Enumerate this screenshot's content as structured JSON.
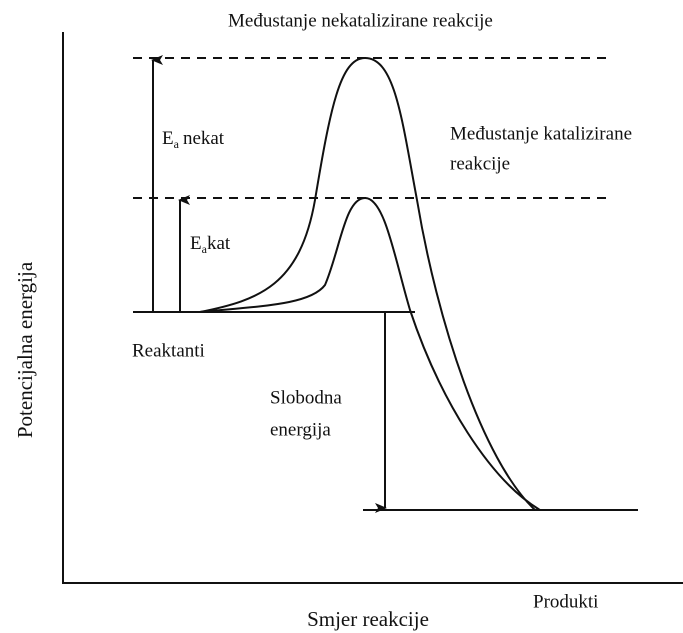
{
  "diagram": {
    "uncatalyzed_transition": "Međustanje nekatalizirane reakcije",
    "catalyzed_transition": [
      "Međustanje katalizirane",
      "reakcije"
    ],
    "ea_uncatalyzed": {
      "symbol": "E",
      "subscript": "a",
      "text": "nekat"
    },
    "ea_catalyzed": {
      "symbol": "E",
      "subscript": "a",
      "text": "kat"
    },
    "reactants": "Reaktanti",
    "free_energy": [
      "Slobodna",
      "energija"
    ],
    "products": "Produkti",
    "y_axis_label": "Potencijalna energija",
    "x_axis_label": "Smjer reakcije"
  }
}
